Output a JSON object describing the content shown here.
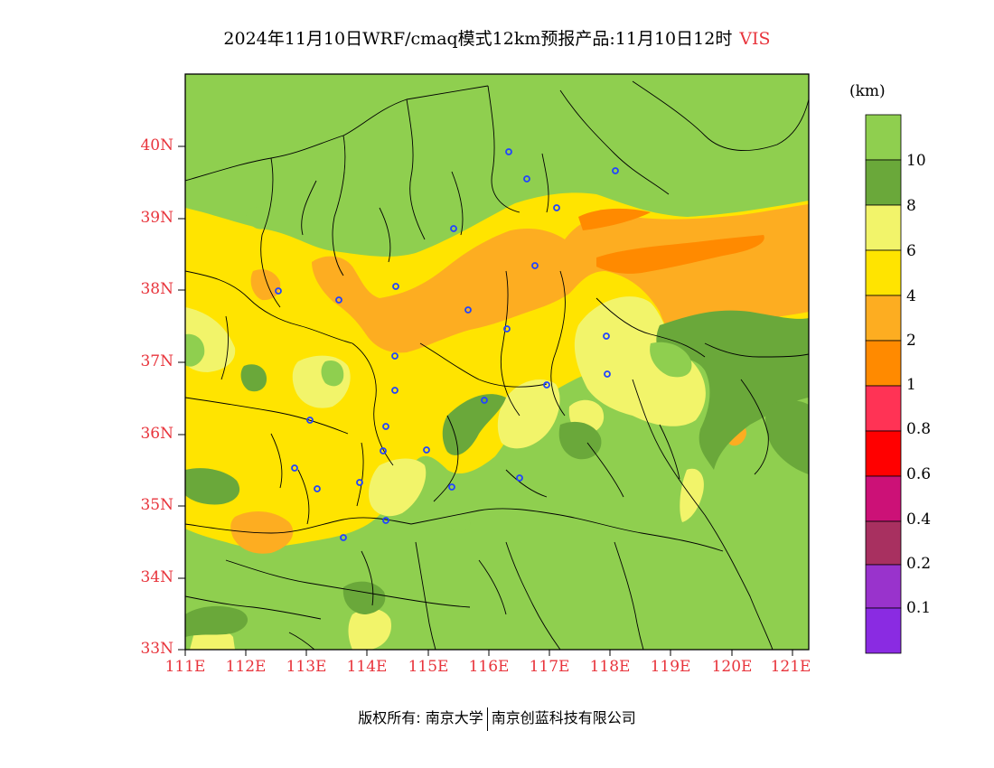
{
  "title": "2024年11月10日WRF/cmaq模式12km预报产品:11月10日12时",
  "variable": "VIS",
  "unit": "(km)",
  "lat_labels": [
    "40N",
    "39N",
    "38N",
    "37N",
    "36N",
    "35N",
    "34N",
    "33N"
  ],
  "lon_labels": [
    "111E",
    "112E",
    "113E",
    "114E",
    "115E",
    "116E",
    "117E",
    "118E",
    "119E",
    "120E",
    "121E"
  ],
  "colorbar": {
    "labels": [
      "10",
      "8",
      "6",
      "4",
      "2",
      "1",
      "0.8",
      "0.6",
      "0.4",
      "0.2",
      "0.1"
    ],
    "colors": [
      "#8fcf4f",
      "#6aa83a",
      "#f2f46a",
      "#ffe400",
      "#fdad21",
      "#ff8a00",
      "#ff3355",
      "#ff0000",
      "#cc1177",
      "#a83060",
      "#9933cc",
      "#8a2be2"
    ]
  },
  "copyright": {
    "left": "版权所有: 南京大学",
    "right": "南京创蓝科技有限公司"
  },
  "colors": {
    "green": "#8fcf4f",
    "dark_green": "#6aa83a",
    "light_yellow": "#f2f46a",
    "yellow": "#ffe400",
    "light_orange": "#fdad21",
    "orange": "#ff8a00",
    "station_blue": "#2244ff"
  }
}
